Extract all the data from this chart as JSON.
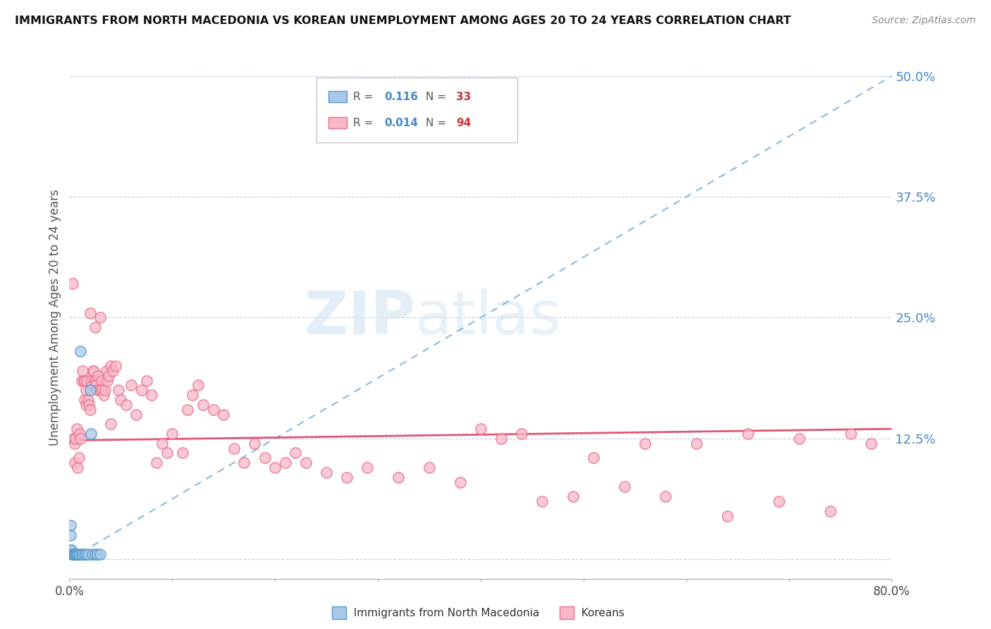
{
  "title": "IMMIGRANTS FROM NORTH MACEDONIA VS KOREAN UNEMPLOYMENT AMONG AGES 20 TO 24 YEARS CORRELATION CHART",
  "source": "Source: ZipAtlas.com",
  "ylabel": "Unemployment Among Ages 20 to 24 years",
  "xlim": [
    0.0,
    0.8
  ],
  "ylim": [
    -0.02,
    0.52
  ],
  "plot_ylim": [
    0.0,
    0.5
  ],
  "yticks": [
    0.0,
    0.125,
    0.25,
    0.375,
    0.5
  ],
  "ytick_labels": [
    "",
    "12.5%",
    "25.0%",
    "37.5%",
    "50.0%"
  ],
  "xticks": [
    0.0,
    0.1,
    0.2,
    0.3,
    0.4,
    0.5,
    0.6,
    0.7,
    0.8
  ],
  "xtick_labels": [
    "0.0%",
    "",
    "",
    "",
    "",
    "",
    "",
    "",
    "80.0%"
  ],
  "blue_R": "0.116",
  "blue_N": "33",
  "pink_R": "0.014",
  "pink_N": "94",
  "blue_face_color": "#a8c8e8",
  "blue_edge_color": "#5599cc",
  "pink_face_color": "#f8b8c8",
  "pink_edge_color": "#e87090",
  "blue_trend_color": "#88bbdd",
  "pink_trend_color": "#e05575",
  "watermark_color": "#d0e4f4",
  "blue_scatter_x": [
    0.001,
    0.001,
    0.002,
    0.002,
    0.003,
    0.003,
    0.003,
    0.004,
    0.004,
    0.004,
    0.005,
    0.005,
    0.005,
    0.006,
    0.006,
    0.006,
    0.007,
    0.007,
    0.008,
    0.009,
    0.01,
    0.011,
    0.012,
    0.013,
    0.015,
    0.016,
    0.018,
    0.02,
    0.021,
    0.022,
    0.025,
    0.027,
    0.03
  ],
  "blue_scatter_y": [
    0.035,
    0.025,
    0.01,
    0.01,
    0.005,
    0.005,
    0.005,
    0.005,
    0.005,
    0.005,
    0.005,
    0.005,
    0.005,
    0.005,
    0.005,
    0.005,
    0.005,
    0.005,
    0.005,
    0.005,
    0.005,
    0.215,
    0.005,
    0.005,
    0.005,
    0.005,
    0.005,
    0.175,
    0.13,
    0.005,
    0.005,
    0.005,
    0.005
  ],
  "pink_scatter_x": [
    0.003,
    0.004,
    0.005,
    0.005,
    0.006,
    0.007,
    0.008,
    0.009,
    0.01,
    0.011,
    0.012,
    0.013,
    0.014,
    0.015,
    0.015,
    0.016,
    0.016,
    0.017,
    0.018,
    0.019,
    0.02,
    0.021,
    0.022,
    0.023,
    0.024,
    0.025,
    0.026,
    0.027,
    0.028,
    0.03,
    0.031,
    0.032,
    0.033,
    0.035,
    0.036,
    0.037,
    0.038,
    0.04,
    0.042,
    0.045,
    0.048,
    0.05,
    0.055,
    0.06,
    0.065,
    0.07,
    0.075,
    0.08,
    0.085,
    0.09,
    0.095,
    0.1,
    0.11,
    0.115,
    0.12,
    0.125,
    0.13,
    0.14,
    0.15,
    0.16,
    0.17,
    0.18,
    0.19,
    0.2,
    0.21,
    0.22,
    0.23,
    0.25,
    0.27,
    0.29,
    0.32,
    0.35,
    0.38,
    0.4,
    0.42,
    0.44,
    0.46,
    0.49,
    0.51,
    0.54,
    0.56,
    0.58,
    0.61,
    0.64,
    0.66,
    0.69,
    0.71,
    0.74,
    0.76,
    0.78,
    0.02,
    0.025,
    0.03,
    0.04
  ],
  "pink_scatter_y": [
    0.285,
    0.125,
    0.12,
    0.1,
    0.125,
    0.135,
    0.095,
    0.105,
    0.13,
    0.125,
    0.185,
    0.195,
    0.185,
    0.165,
    0.185,
    0.175,
    0.16,
    0.185,
    0.165,
    0.16,
    0.155,
    0.185,
    0.18,
    0.195,
    0.195,
    0.185,
    0.18,
    0.175,
    0.19,
    0.175,
    0.185,
    0.175,
    0.17,
    0.175,
    0.195,
    0.185,
    0.19,
    0.2,
    0.195,
    0.2,
    0.175,
    0.165,
    0.16,
    0.18,
    0.15,
    0.175,
    0.185,
    0.17,
    0.1,
    0.12,
    0.11,
    0.13,
    0.11,
    0.155,
    0.17,
    0.18,
    0.16,
    0.155,
    0.15,
    0.115,
    0.1,
    0.12,
    0.105,
    0.095,
    0.1,
    0.11,
    0.1,
    0.09,
    0.085,
    0.095,
    0.085,
    0.095,
    0.08,
    0.135,
    0.125,
    0.13,
    0.06,
    0.065,
    0.105,
    0.075,
    0.12,
    0.065,
    0.12,
    0.045,
    0.13,
    0.06,
    0.125,
    0.05,
    0.13,
    0.12,
    0.255,
    0.24,
    0.25,
    0.14
  ],
  "blue_trend_x0": 0.0,
  "blue_trend_y0": 0.0,
  "blue_trend_x1": 0.8,
  "blue_trend_y1": 0.5,
  "pink_trend_x0": 0.0,
  "pink_trend_y0": 0.123,
  "pink_trend_x1": 0.8,
  "pink_trend_y1": 0.135
}
